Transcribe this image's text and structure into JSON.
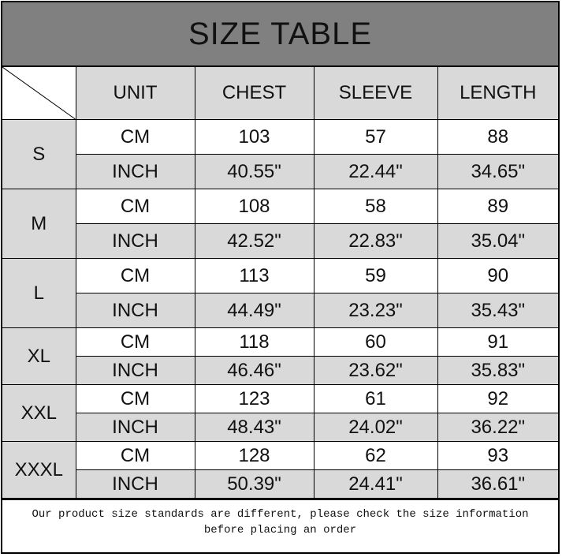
{
  "title": "SIZE TABLE",
  "headers": [
    "UNIT",
    "CHEST",
    "SLEEVE",
    "LENGTH"
  ],
  "sizes": [
    {
      "size": "S",
      "cm": {
        "unit": "CM",
        "chest": "103",
        "sleeve": "57",
        "length": "88"
      },
      "inch": {
        "unit": "INCH",
        "chest": "40.55\"",
        "sleeve": "22.44\"",
        "length": "34.65\""
      }
    },
    {
      "size": "M",
      "cm": {
        "unit": "CM",
        "chest": "108",
        "sleeve": "58",
        "length": "89"
      },
      "inch": {
        "unit": "INCH",
        "chest": "42.52\"",
        "sleeve": "22.83\"",
        "length": "35.04\""
      }
    },
    {
      "size": "L",
      "cm": {
        "unit": "CM",
        "chest": "113",
        "sleeve": "59",
        "length": "90"
      },
      "inch": {
        "unit": "INCH",
        "chest": "44.49\"",
        "sleeve": "23.23\"",
        "length": "35.43\""
      }
    },
    {
      "size": "XL",
      "cm": {
        "unit": "CM",
        "chest": "118",
        "sleeve": "60",
        "length": "91"
      },
      "inch": {
        "unit": "INCH",
        "chest": "46.46\"",
        "sleeve": "23.62\"",
        "length": "35.83\""
      }
    },
    {
      "size": "XXL",
      "cm": {
        "unit": "CM",
        "chest": "123",
        "sleeve": "61",
        "length": "92"
      },
      "inch": {
        "unit": "INCH",
        "chest": "48.43\"",
        "sleeve": "24.02\"",
        "length": "36.22\""
      }
    },
    {
      "size": "XXXL",
      "cm": {
        "unit": "CM",
        "chest": "128",
        "sleeve": "62",
        "length": "93"
      },
      "inch": {
        "unit": "INCH",
        "chest": "50.39\"",
        "sleeve": "24.41\"",
        "length": "36.61\""
      }
    }
  ],
  "footer": {
    "line1": "Our product size standards are different, please check the size information",
    "line2": "before placing an order"
  },
  "colors": {
    "title_bg": "#808080",
    "cell_gray": "#d9d9d9"
  }
}
